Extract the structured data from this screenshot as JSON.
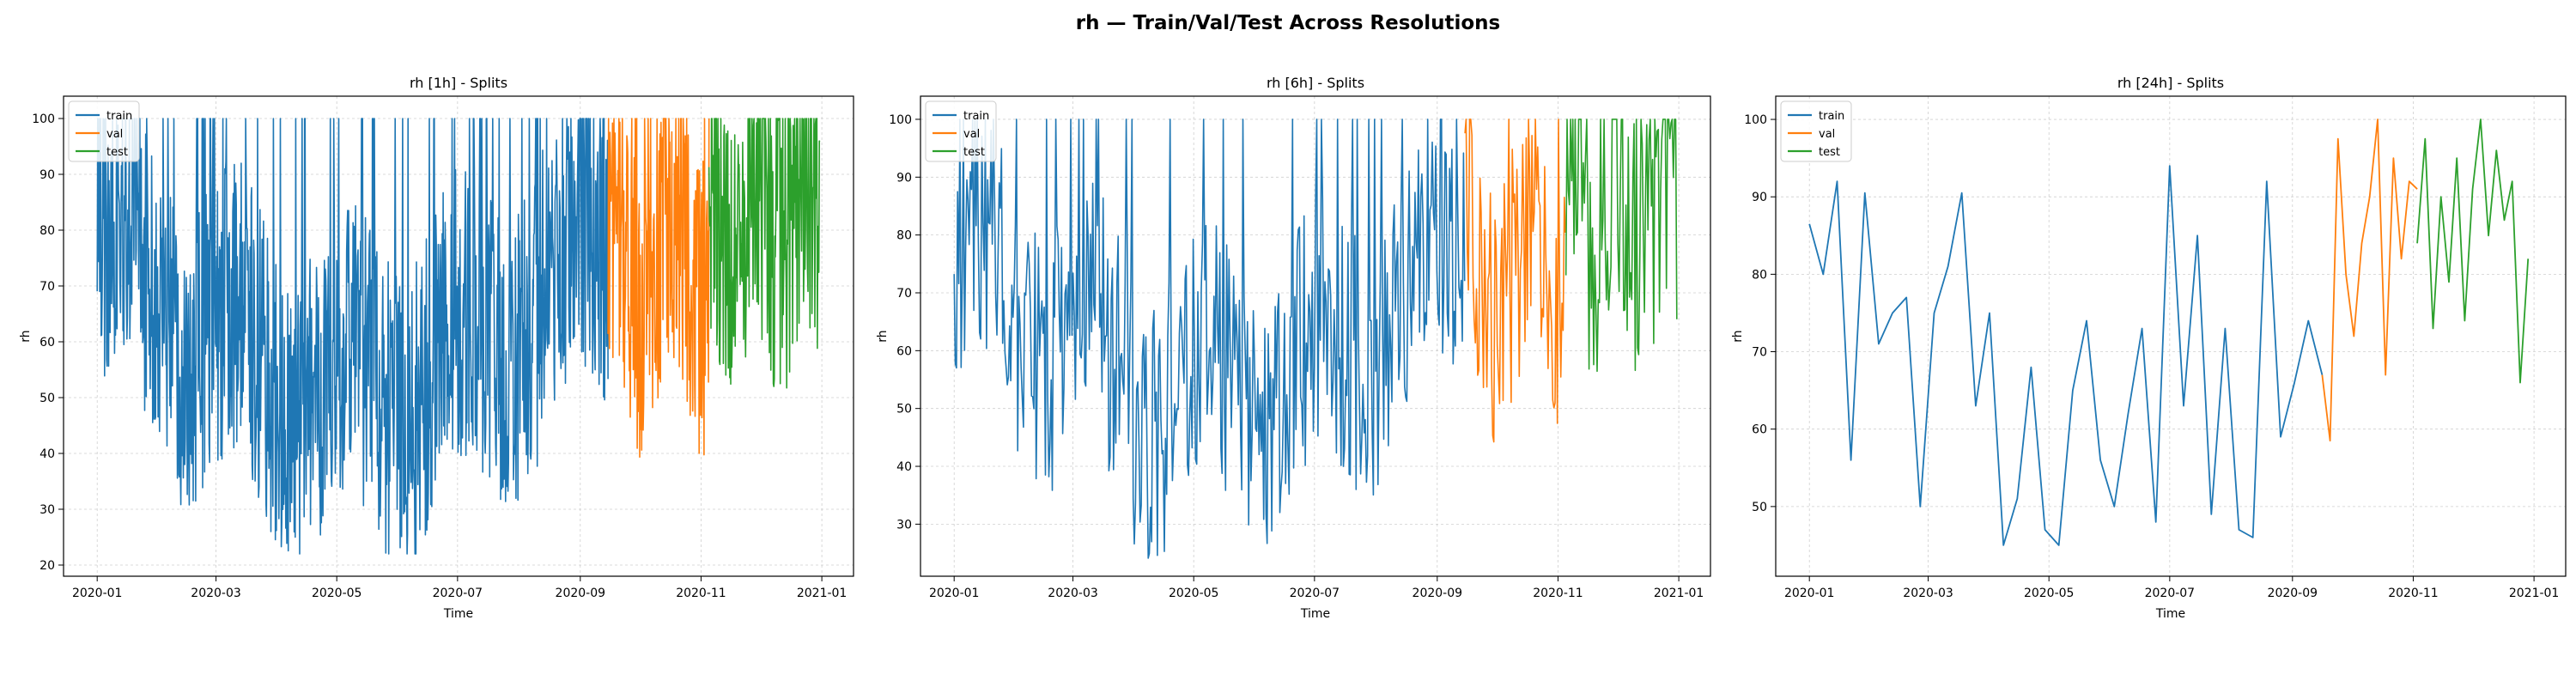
{
  "figure": {
    "suptitle": "rh — Train/Val/Test Across Resolutions"
  },
  "legend": {
    "entries": [
      "train",
      "val",
      "test"
    ],
    "placement": "upper-left"
  },
  "colors": {
    "train": "#1f77b4",
    "val": "#ff7f0e",
    "test": "#2ca02c",
    "grid": "#b0b0b0",
    "axis": "#000000"
  },
  "chart_data": [
    {
      "type": "line",
      "title": "rh [1h] - Splits",
      "xlabel": "Time",
      "ylabel": "rh",
      "x_ticks": [
        "2020-01",
        "2020-03",
        "2020-05",
        "2020-07",
        "2020-09",
        "2020-11",
        "2021-01"
      ],
      "y_ticks": [
        20,
        30,
        40,
        50,
        60,
        70,
        80,
        90,
        100
      ],
      "xlim": [
        "2019-12-15",
        "2021-01-17"
      ],
      "ylim": [
        18,
        104
      ],
      "grid": true,
      "legend": "upper-left",
      "series": [
        {
          "name": "train",
          "x_range": [
            "2020-01-01",
            "2020-09-15"
          ],
          "y_range": [
            22,
            100
          ]
        },
        {
          "name": "val",
          "x_range": [
            "2020-09-15",
            "2020-11-05"
          ],
          "y_range": [
            31.5,
            100
          ]
        },
        {
          "name": "test",
          "x_range": [
            "2020-11-05",
            "2020-12-31"
          ],
          "y_range": [
            44.5,
            100
          ]
        }
      ]
    },
    {
      "type": "line",
      "title": "rh [6h] - Splits",
      "xlabel": "Time",
      "ylabel": "rh",
      "x_ticks": [
        "2020-01",
        "2020-03",
        "2020-05",
        "2020-07",
        "2020-09",
        "2020-11",
        "2021-01"
      ],
      "y_ticks": [
        30,
        40,
        50,
        60,
        70,
        80,
        90,
        100
      ],
      "xlim": [
        "2019-12-15",
        "2021-01-17"
      ],
      "ylim": [
        21,
        104
      ],
      "grid": true,
      "legend": "upper-left",
      "series": [
        {
          "name": "train",
          "x_range": [
            "2020-01-01",
            "2020-09-15"
          ],
          "y_range": [
            24,
            100
          ]
        },
        {
          "name": "val",
          "x_range": [
            "2020-09-15",
            "2020-11-05"
          ],
          "y_range": [
            36,
            100
          ]
        },
        {
          "name": "test",
          "x_range": [
            "2020-11-05",
            "2020-12-31"
          ],
          "y_range": [
            53,
            100
          ]
        }
      ]
    },
    {
      "type": "line",
      "title": "rh [24h] - Splits",
      "xlabel": "Time",
      "ylabel": "rh",
      "x_ticks": [
        "2020-01",
        "2020-03",
        "2020-05",
        "2020-07",
        "2020-09",
        "2020-11",
        "2021-01"
      ],
      "y_ticks": [
        50,
        60,
        70,
        80,
        90,
        100
      ],
      "xlim": [
        "2019-12-15",
        "2021-01-17"
      ],
      "ylim": [
        41,
        103
      ],
      "grid": true,
      "legend": "upper-left",
      "series": [
        {
          "name": "train",
          "x": [
            "2020-01-01",
            "2020-01-08",
            "2020-01-15",
            "2020-01-22",
            "2020-01-29",
            "2020-02-05",
            "2020-02-12",
            "2020-02-19",
            "2020-02-26",
            "2020-03-04",
            "2020-03-11",
            "2020-03-18",
            "2020-03-25",
            "2020-04-01",
            "2020-04-08",
            "2020-04-15",
            "2020-04-22",
            "2020-04-29",
            "2020-05-06",
            "2020-05-13",
            "2020-05-20",
            "2020-05-27",
            "2020-06-03",
            "2020-06-10",
            "2020-06-17",
            "2020-06-24",
            "2020-07-01",
            "2020-07-08",
            "2020-07-15",
            "2020-07-22",
            "2020-07-29",
            "2020-08-05",
            "2020-08-12",
            "2020-08-19",
            "2020-08-26",
            "2020-09-02",
            "2020-09-09",
            "2020-09-16"
          ],
          "y": [
            86.5,
            80,
            92,
            56,
            90.5,
            71,
            75,
            77,
            50,
            75,
            81,
            90.5,
            63,
            75,
            45,
            51,
            68,
            47,
            45,
            65,
            74,
            56,
            50,
            62,
            73,
            48,
            94,
            63,
            85,
            49,
            73,
            47,
            46,
            92,
            59,
            66,
            74,
            67
          ]
        },
        {
          "name": "val",
          "x": [
            "2020-09-16",
            "2020-09-20",
            "2020-09-24",
            "2020-09-28",
            "2020-10-02",
            "2020-10-06",
            "2020-10-10",
            "2020-10-14",
            "2020-10-18",
            "2020-10-22",
            "2020-10-26",
            "2020-10-30",
            "2020-11-03"
          ],
          "y": [
            67,
            58.5,
            97.5,
            80,
            72,
            84,
            90,
            100,
            67,
            95,
            82,
            92,
            91
          ]
        },
        {
          "name": "test",
          "x": [
            "2020-11-03",
            "2020-11-07",
            "2020-11-11",
            "2020-11-15",
            "2020-11-19",
            "2020-11-23",
            "2020-11-27",
            "2020-12-01",
            "2020-12-05",
            "2020-12-09",
            "2020-12-13",
            "2020-12-17",
            "2020-12-21",
            "2020-12-25",
            "2020-12-29"
          ],
          "y": [
            84,
            97.5,
            73,
            90,
            79,
            95,
            74,
            91,
            100,
            85,
            96,
            87,
            92,
            66,
            82
          ]
        }
      ]
    }
  ]
}
